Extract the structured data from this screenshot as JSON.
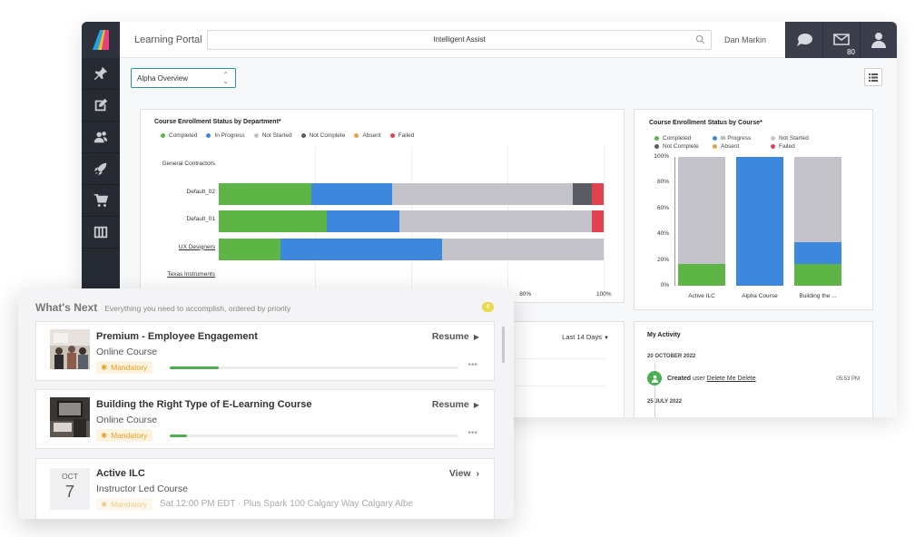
{
  "header": {
    "portal_title": "Learning Portal",
    "search_placeholder": "Intelligent Assist",
    "user_name": "Dan Markin",
    "mail_count": "80"
  },
  "toolbar": {
    "view_select": "Alpha Overview"
  },
  "dept_chart": {
    "title": "Course Enrollment Status by Department*",
    "legend": [
      {
        "label": "Completed",
        "color": "#5cb544"
      },
      {
        "label": "In Progress",
        "color": "#3d87dc"
      },
      {
        "label": "Not Started",
        "color": "#c3c3c9"
      },
      {
        "label": "Not Complete",
        "color": "#595c63"
      },
      {
        "label": "Absent",
        "color": "#e5a24a"
      },
      {
        "label": "Failed",
        "color": "#e0434f"
      }
    ],
    "rows": [
      "General Contractors",
      "Default_02",
      "Default_01",
      "UX Designers",
      "Texas Instruments"
    ],
    "x_ticks": [
      "80%",
      "100%"
    ]
  },
  "course_chart": {
    "title": "Course Enrollment Status by Course*",
    "y_ticks": [
      "100%",
      "80%",
      "60%",
      "40%",
      "20%",
      "0%"
    ],
    "categories": [
      "Active ILC",
      "Alpha Course",
      "Building the ..."
    ]
  },
  "chart_data": [
    {
      "type": "bar",
      "orientation": "horizontal",
      "stacked": true,
      "title": "Course Enrollment Status by Department*",
      "categories": [
        "General Contractors",
        "Default_02",
        "Default_01",
        "UX Designers",
        "Texas Instruments"
      ],
      "series": [
        {
          "name": "Completed",
          "values": [
            0,
            24,
            28,
            16,
            0
          ]
        },
        {
          "name": "In Progress",
          "values": [
            0,
            21,
            19,
            42,
            0
          ]
        },
        {
          "name": "Not Started",
          "values": [
            0,
            47,
            50,
            42,
            0
          ]
        },
        {
          "name": "Not Complete",
          "values": [
            0,
            5,
            0,
            0,
            0
          ]
        },
        {
          "name": "Absent",
          "values": [
            0,
            0,
            0,
            0,
            0
          ]
        },
        {
          "name": "Failed",
          "values": [
            0,
            3,
            3,
            0,
            0
          ]
        }
      ],
      "xlim": [
        0,
        100
      ]
    },
    {
      "type": "bar",
      "stacked": true,
      "title": "Course Enrollment Status by Course*",
      "categories": [
        "Active ILC",
        "Alpha Course",
        "Building the ..."
      ],
      "series": [
        {
          "name": "Completed",
          "values": [
            17,
            0,
            17
          ]
        },
        {
          "name": "In Progress",
          "values": [
            0,
            100,
            17
          ]
        },
        {
          "name": "Not Started",
          "values": [
            83,
            0,
            66
          ]
        },
        {
          "name": "Not Complete",
          "values": [
            0,
            0,
            0
          ]
        },
        {
          "name": "Absent",
          "values": [
            0,
            0,
            0
          ]
        },
        {
          "name": "Failed",
          "values": [
            0,
            0,
            0
          ]
        }
      ],
      "ylim": [
        0,
        100
      ]
    }
  ],
  "lower_card": {
    "range_select": "Last 14 Days"
  },
  "activity": {
    "title": "My Activity",
    "date1": "20 OCTOBER 2022",
    "action": "Created",
    "user_word": "user",
    "target": "Delete Me Delete",
    "time": "05:53 PM",
    "date2": "25 JULY 2022"
  },
  "whats_next": {
    "title": "What's Next",
    "subtitle": "Everything you need to accomplish, ordered by priority",
    "badge": "6",
    "tasks": [
      {
        "title": "Premium - Employee Engagement",
        "type": "Online Course",
        "action": "Resume",
        "tag": "Mandatory",
        "progress": 0.17
      },
      {
        "title": "Building the Right Type of E-Learning Course",
        "type": "Online Course",
        "action": "Resume",
        "tag": "Mandatory",
        "progress": 0.06
      },
      {
        "title": "Active ILC",
        "type": "Instructor Led Course",
        "action": "View",
        "tag": "Mandatory",
        "month": "OCT",
        "day": "7",
        "meta": "Sat 12:00 PM EDT · Plus Spark 100 Calgary Way Calgary Albe"
      }
    ]
  }
}
